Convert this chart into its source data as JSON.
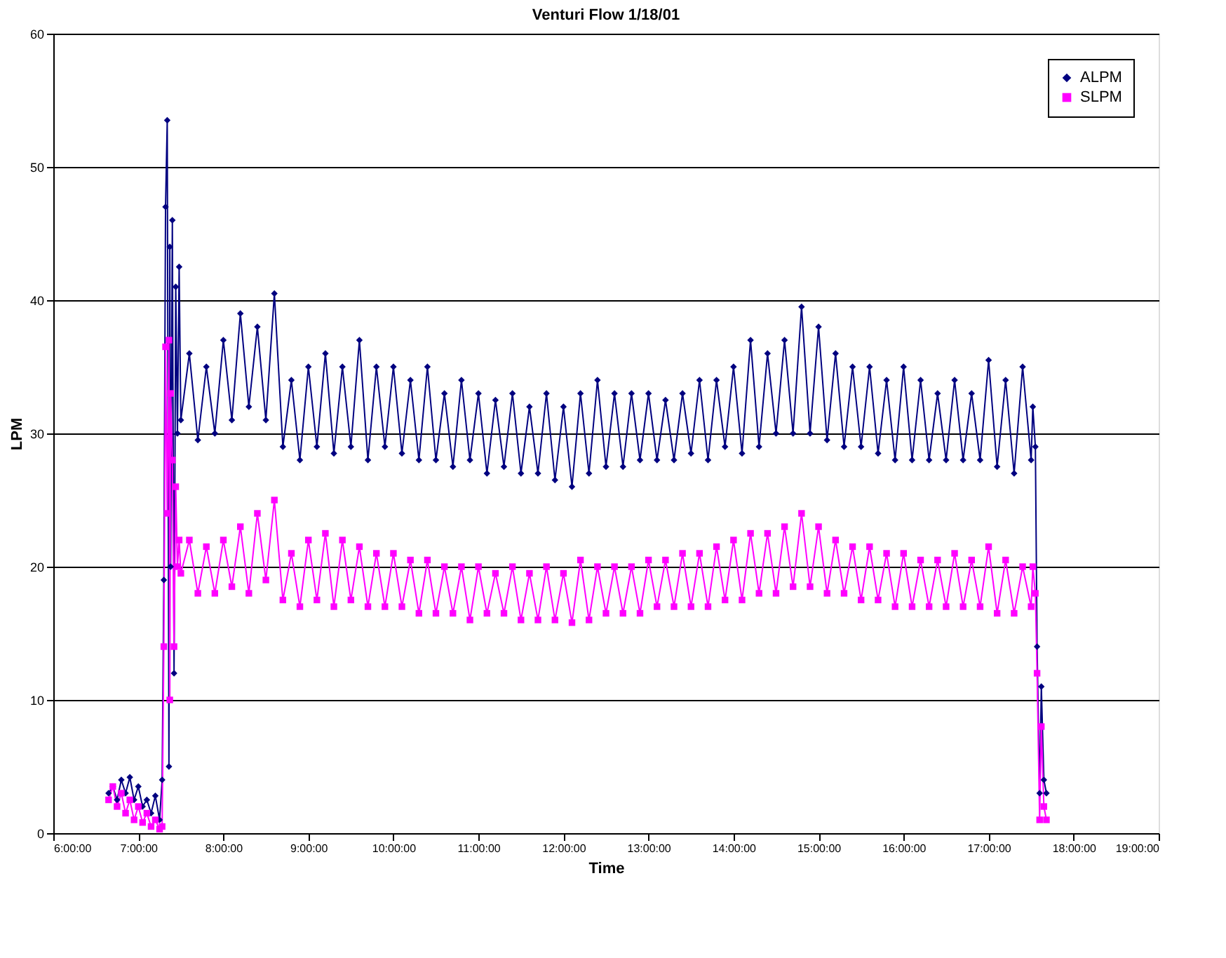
{
  "chart_data": {
    "type": "line",
    "title": "Venturi Flow 1/18/01",
    "xlabel": "Time",
    "ylabel": "LPM",
    "x": [
      6.65,
      6.7,
      6.75,
      6.8,
      6.85,
      6.9,
      6.95,
      7.0,
      7.05,
      7.1,
      7.15,
      7.2,
      7.25,
      7.28,
      7.3,
      7.32,
      7.34,
      7.36,
      7.37,
      7.38,
      7.4,
      7.42,
      7.44,
      7.46,
      7.48,
      7.5,
      7.6,
      7.7,
      7.8,
      7.9,
      8.0,
      8.1,
      8.2,
      8.3,
      8.4,
      8.5,
      8.6,
      8.7,
      8.8,
      8.9,
      9.0,
      9.1,
      9.2,
      9.3,
      9.4,
      9.5,
      9.6,
      9.7,
      9.8,
      9.9,
      10.0,
      10.1,
      10.2,
      10.3,
      10.4,
      10.5,
      10.6,
      10.7,
      10.8,
      10.9,
      11.0,
      11.1,
      11.2,
      11.3,
      11.4,
      11.5,
      11.6,
      11.7,
      11.8,
      11.9,
      12.0,
      12.1,
      12.2,
      12.3,
      12.4,
      12.5,
      12.6,
      12.7,
      12.8,
      12.9,
      13.0,
      13.1,
      13.2,
      13.3,
      13.4,
      13.5,
      13.6,
      13.7,
      13.8,
      13.9,
      14.0,
      14.1,
      14.2,
      14.3,
      14.4,
      14.5,
      14.6,
      14.7,
      14.8,
      14.9,
      15.0,
      15.1,
      15.2,
      15.3,
      15.4,
      15.5,
      15.6,
      15.7,
      15.8,
      15.9,
      16.0,
      16.1,
      16.2,
      16.3,
      16.4,
      16.5,
      16.6,
      16.7,
      16.8,
      16.9,
      17.0,
      17.1,
      17.2,
      17.3,
      17.4,
      17.5,
      17.52,
      17.55,
      17.57,
      17.6,
      17.62,
      17.65,
      17.68
    ],
    "series": [
      {
        "name": "ALPM",
        "color": "#000080",
        "marker": "diamond",
        "values": [
          3,
          3.5,
          2.5,
          4,
          3,
          4.2,
          2.5,
          3.5,
          2,
          2.5,
          1.5,
          2.8,
          1,
          4,
          19,
          47,
          53.5,
          5,
          44,
          20,
          46,
          12,
          41,
          30,
          42.5,
          31,
          36,
          29.5,
          35,
          30,
          37,
          31,
          39,
          32,
          38,
          31,
          40.5,
          29,
          34,
          28,
          35,
          29,
          36,
          28.5,
          35,
          29,
          37,
          28,
          35,
          29,
          35,
          28.5,
          34,
          28,
          35,
          28,
          33,
          27.5,
          34,
          28,
          33,
          27,
          32.5,
          27.5,
          33,
          27,
          32,
          27,
          33,
          26.5,
          32,
          26,
          33,
          27,
          34,
          27.5,
          33,
          27.5,
          33,
          28,
          33,
          28,
          32.5,
          28,
          33,
          28.5,
          34,
          28,
          34,
          29,
          35,
          28.5,
          37,
          29,
          36,
          30,
          37,
          30,
          39.5,
          30,
          38,
          29.5,
          36,
          29,
          35,
          29,
          35,
          28.5,
          34,
          28,
          35,
          28,
          34,
          28,
          33,
          28,
          34,
          28,
          33,
          28,
          35.5,
          27.5,
          34,
          27,
          35,
          28,
          32,
          29,
          14,
          3,
          11,
          4,
          3
        ]
      },
      {
        "name": "SLPM",
        "color": "#ff00ff",
        "marker": "square",
        "values": [
          2.5,
          3.5,
          2,
          3,
          1.5,
          2.5,
          1,
          2,
          0.8,
          1.5,
          0.5,
          1,
          0.3,
          0.5,
          14,
          36.5,
          24,
          37,
          10,
          33,
          28,
          14,
          26,
          20,
          22,
          19.5,
          22,
          18,
          21.5,
          18,
          22,
          18.5,
          23,
          18,
          24,
          19,
          25,
          17.5,
          21,
          17,
          22,
          17.5,
          22.5,
          17,
          22,
          17.5,
          21.5,
          17,
          21,
          17,
          21,
          17,
          20.5,
          16.5,
          20.5,
          16.5,
          20,
          16.5,
          20,
          16,
          20,
          16.5,
          19.5,
          16.5,
          20,
          16,
          19.5,
          16,
          20,
          16,
          19.5,
          15.8,
          20.5,
          16,
          20,
          16.5,
          20,
          16.5,
          20,
          16.5,
          20.5,
          17,
          20.5,
          17,
          21,
          17,
          21,
          17,
          21.5,
          17.5,
          22,
          17.5,
          22.5,
          18,
          22.5,
          18,
          23,
          18.5,
          24,
          18.5,
          23,
          18,
          22,
          18,
          21.5,
          17.5,
          21.5,
          17.5,
          21,
          17,
          21,
          17,
          20.5,
          17,
          20.5,
          17,
          21,
          17,
          20.5,
          17,
          21.5,
          16.5,
          20.5,
          16.5,
          20,
          17,
          20,
          18,
          12,
          1,
          8,
          2,
          1
        ]
      }
    ],
    "xlim": [
      6,
      19
    ],
    "xticks": [
      {
        "value": 6,
        "label": "6:00:00"
      },
      {
        "value": 7,
        "label": "7:00:00"
      },
      {
        "value": 8,
        "label": "8:00:00"
      },
      {
        "value": 9,
        "label": "9:00:00"
      },
      {
        "value": 10,
        "label": "10:00:00"
      },
      {
        "value": 11,
        "label": "11:00:00"
      },
      {
        "value": 12,
        "label": "12:00:00"
      },
      {
        "value": 13,
        "label": "13:00:00"
      },
      {
        "value": 14,
        "label": "14:00:00"
      },
      {
        "value": 15,
        "label": "15:00:00"
      },
      {
        "value": 16,
        "label": "16:00:00"
      },
      {
        "value": 17,
        "label": "17:00:00"
      },
      {
        "value": 18,
        "label": "18:00:00"
      },
      {
        "value": 19,
        "label": "19:00:00"
      }
    ],
    "ylim": [
      0,
      60
    ],
    "yticks": [
      0,
      10,
      20,
      30,
      40,
      50,
      60
    ],
    "grid": "y",
    "legend": "top right",
    "line_style": "solid"
  }
}
